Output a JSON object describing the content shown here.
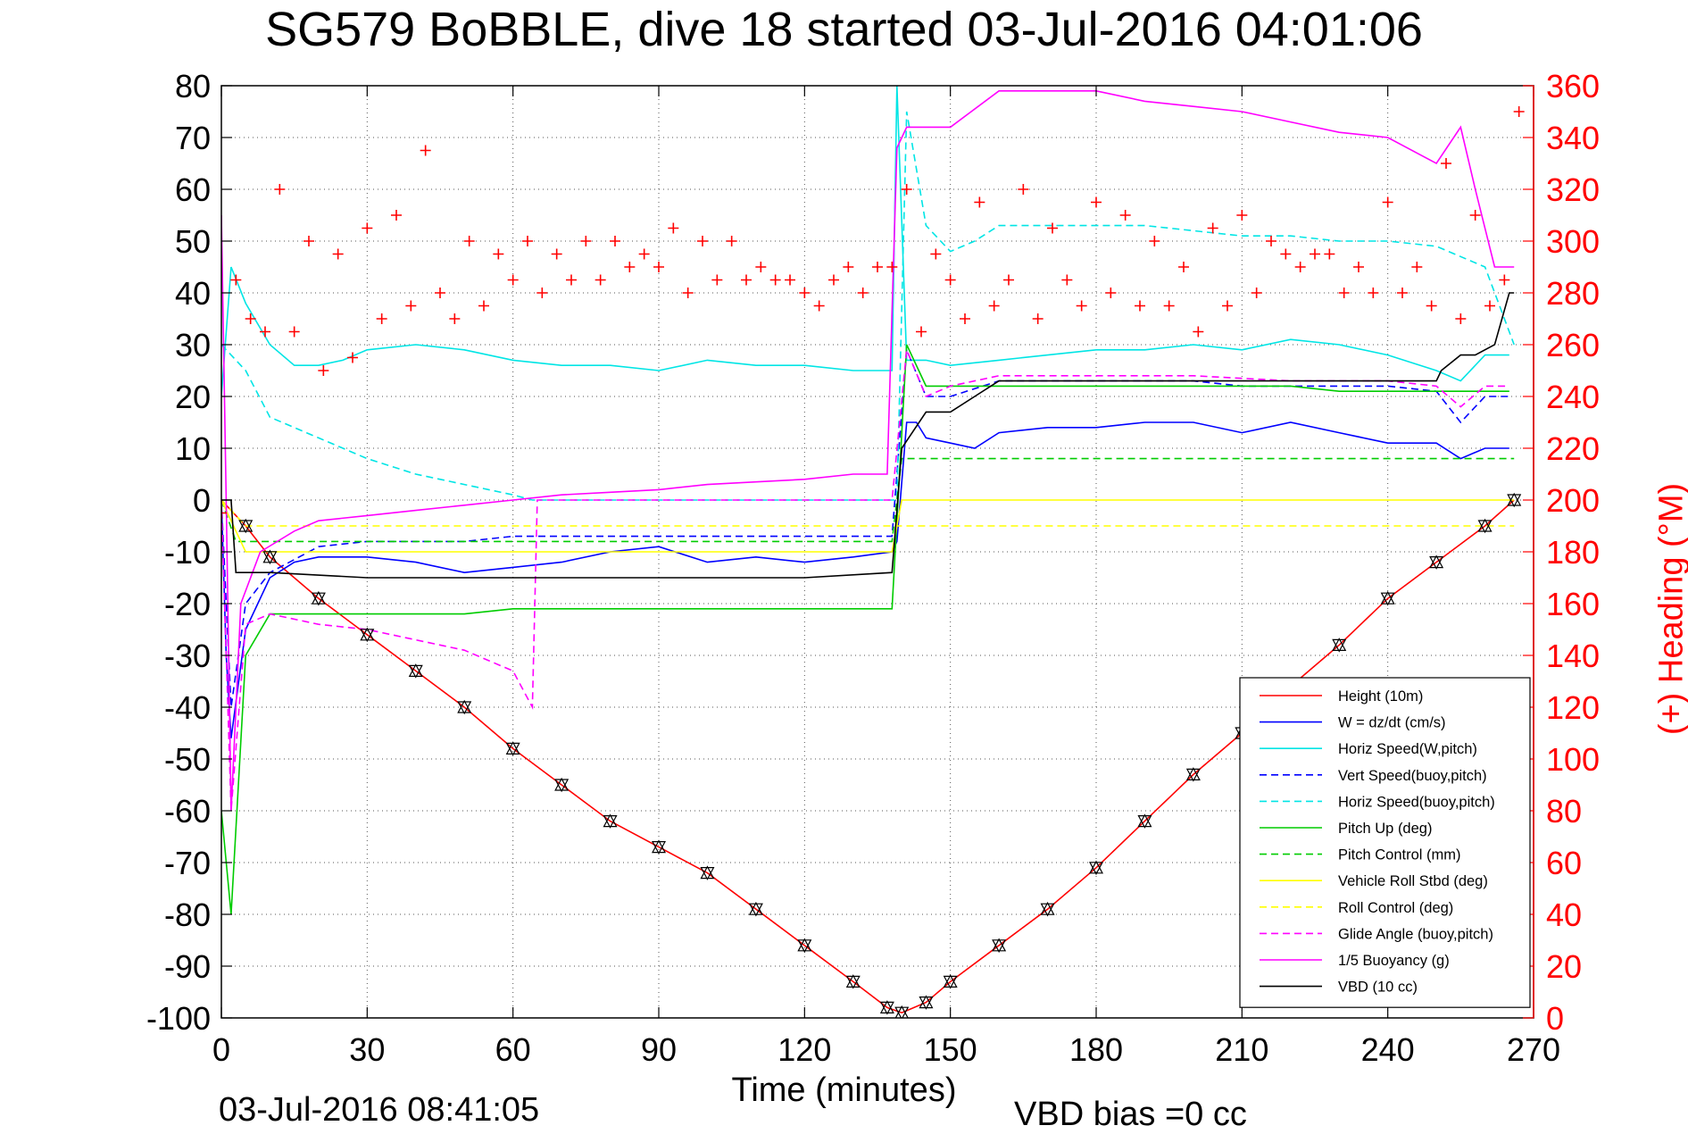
{
  "chart_data": {
    "type": "line",
    "title": "SG579 BoBBLE, dive 18 started 03-Jul-2016 04:01:06",
    "xlabel": "Time (minutes)",
    "ylabel_right": "(+) Heading (°M)",
    "footer_left": "03-Jul-2016 08:41:05",
    "footer_right": "VBD bias =0 cc",
    "xlim": [
      0,
      270
    ],
    "ylim": [
      -100,
      80
    ],
    "ylim_right": [
      0,
      360
    ],
    "xticks": [
      0,
      30,
      60,
      90,
      120,
      150,
      180,
      210,
      240,
      270
    ],
    "yticks": [
      80,
      70,
      60,
      50,
      40,
      30,
      20,
      10,
      0,
      -10,
      -20,
      -30,
      -40,
      -50,
      -60,
      -70,
      -80,
      -90,
      -100
    ],
    "yticks_right": [
      360,
      340,
      320,
      300,
      280,
      260,
      240,
      220,
      200,
      180,
      160,
      140,
      120,
      100,
      80,
      60,
      40,
      20,
      0
    ],
    "grid": true,
    "legend_position": "lower-right",
    "series": [
      {
        "name": "Height (10m)",
        "color": "#ff0000",
        "style": "solid",
        "x": [
          0,
          5,
          10,
          20,
          30,
          40,
          50,
          60,
          70,
          80,
          90,
          100,
          110,
          120,
          130,
          137,
          140,
          145,
          150,
          160,
          170,
          180,
          190,
          200,
          210,
          220,
          230,
          240,
          250,
          260,
          266
        ],
        "y": [
          0,
          -5,
          -11,
          -19,
          -26,
          -33,
          -40,
          -48,
          -55,
          -62,
          -67,
          -72,
          -79,
          -86,
          -93,
          -98,
          -99,
          -97,
          -93,
          -86,
          -79,
          -71,
          -62,
          -53,
          -45,
          -36,
          -28,
          -19,
          -12,
          -5,
          0
        ]
      },
      {
        "name": "W = dz/dt (cm/s)",
        "color": "#0000ff",
        "style": "solid",
        "x": [
          0,
          1,
          2,
          5,
          10,
          15,
          20,
          25,
          30,
          40,
          50,
          60,
          70,
          80,
          90,
          100,
          110,
          120,
          130,
          138,
          139,
          141,
          143,
          145,
          150,
          155,
          160,
          170,
          180,
          190,
          200,
          210,
          220,
          230,
          240,
          250,
          255,
          260,
          265
        ],
        "y": [
          0,
          -30,
          -46,
          -25,
          -15,
          -12,
          -11,
          -11,
          -11,
          -12,
          -14,
          -13,
          -12,
          -10,
          -9,
          -12,
          -11,
          -12,
          -11,
          -10,
          -8,
          15,
          15,
          12,
          11,
          10,
          13,
          14,
          14,
          15,
          15,
          13,
          15,
          13,
          11,
          11,
          8,
          10,
          10
        ]
      },
      {
        "name": "Horiz Speed(W,pitch)",
        "color": "#00e5e5",
        "style": "solid",
        "x": [
          0,
          2,
          5,
          10,
          15,
          20,
          25,
          30,
          40,
          50,
          60,
          70,
          80,
          90,
          100,
          110,
          120,
          130,
          138,
          139,
          141,
          145,
          150,
          160,
          170,
          180,
          190,
          200,
          210,
          220,
          230,
          240,
          250,
          255,
          260,
          265
        ],
        "y": [
          20,
          45,
          38,
          30,
          26,
          26,
          27,
          29,
          30,
          29,
          27,
          26,
          26,
          25,
          27,
          26,
          26,
          25,
          25,
          80,
          27,
          27,
          26,
          27,
          28,
          29,
          29,
          30,
          29,
          31,
          30,
          28,
          25,
          23,
          28,
          28
        ]
      },
      {
        "name": "Vert Speed(buoy,pitch)",
        "color": "#0000ff",
        "style": "dashed",
        "x": [
          0,
          2,
          5,
          10,
          20,
          30,
          40,
          50,
          60,
          70,
          80,
          90,
          100,
          110,
          120,
          130,
          138,
          141,
          145,
          150,
          160,
          170,
          180,
          190,
          200,
          210,
          220,
          230,
          240,
          250,
          255,
          260,
          265
        ],
        "y": [
          0,
          -40,
          -20,
          -14,
          -9,
          -8,
          -8,
          -8,
          -7,
          -7,
          -7,
          -7,
          -7,
          -7,
          -7,
          -7,
          -7,
          29,
          20,
          20,
          23,
          23,
          23,
          23,
          23,
          22,
          22,
          22,
          22,
          21,
          15,
          20,
          20
        ]
      },
      {
        "name": "Horiz Speed(buoy,pitch)",
        "color": "#00e5e5",
        "style": "dashed",
        "x": [
          0,
          5,
          10,
          20,
          30,
          40,
          50,
          60,
          64,
          66,
          80,
          100,
          120,
          139,
          141,
          145,
          150,
          155,
          160,
          170,
          180,
          190,
          200,
          210,
          220,
          230,
          240,
          250,
          260,
          266
        ],
        "y": [
          30,
          25,
          16,
          12,
          8,
          5,
          3,
          1,
          0,
          0,
          0,
          0,
          0,
          0,
          75,
          53,
          48,
          50,
          53,
          53,
          53,
          53,
          52,
          51,
          51,
          50,
          50,
          49,
          45,
          30
        ]
      },
      {
        "name": "Pitch Up (deg)",
        "color": "#00cc00",
        "style": "solid",
        "x": [
          0,
          2,
          5,
          10,
          20,
          30,
          40,
          50,
          60,
          70,
          80,
          90,
          100,
          110,
          120,
          130,
          138,
          141,
          145,
          150,
          155,
          160,
          170,
          180,
          190,
          200,
          210,
          220,
          230,
          240,
          250,
          260,
          265
        ],
        "y": [
          -60,
          -80,
          -30,
          -22,
          -22,
          -22,
          -22,
          -22,
          -21,
          -21,
          -21,
          -21,
          -21,
          -21,
          -21,
          -21,
          -21,
          30,
          22,
          22,
          22,
          22,
          22,
          22,
          22,
          22,
          22,
          22,
          21,
          21,
          21,
          21,
          21
        ]
      },
      {
        "name": "Pitch Control (mm)",
        "color": "#00cc00",
        "style": "dashed",
        "x": [
          0,
          3,
          10,
          30,
          60,
          100,
          138,
          140,
          160,
          200,
          240,
          266
        ],
        "y": [
          0,
          -8,
          -8,
          -8,
          -8,
          -8,
          -8,
          8,
          8,
          8,
          8,
          8
        ]
      },
      {
        "name": "Vehicle Roll Stbd (deg)",
        "color": "#ffff00",
        "style": "solid",
        "x": [
          0,
          5,
          10,
          20,
          40,
          60,
          80,
          100,
          120,
          138,
          140,
          160,
          180,
          200,
          220,
          240,
          260,
          266
        ],
        "y": [
          0,
          -10,
          -10,
          -10,
          -10,
          -10,
          -10,
          -10,
          -10,
          -10,
          0,
          0,
          0,
          0,
          0,
          0,
          0,
          0
        ]
      },
      {
        "name": "Roll Control (deg)",
        "color": "#ffff00",
        "style": "dashed",
        "x": [
          0,
          5,
          10,
          20,
          40,
          60,
          80,
          100,
          120,
          138,
          140,
          160,
          180,
          200,
          220,
          240,
          260,
          266
        ],
        "y": [
          0,
          -5,
          -5,
          -5,
          -5,
          -5,
          -5,
          -5,
          -5,
          -5,
          -5,
          -5,
          -5,
          -5,
          -5,
          -5,
          -5,
          -5
        ]
      },
      {
        "name": "Glide Angle (buoy,pitch)",
        "color": "#ff00ff",
        "style": "dashed",
        "x": [
          0,
          2,
          5,
          10,
          20,
          30,
          40,
          50,
          60,
          64,
          65,
          80,
          100,
          120,
          138,
          141,
          145,
          150,
          160,
          180,
          200,
          220,
          240,
          250,
          255,
          260,
          265
        ],
        "y": [
          0,
          -60,
          -24,
          -22,
          -24,
          -25,
          -27,
          -29,
          -33,
          -40,
          0,
          0,
          0,
          0,
          0,
          29,
          20,
          22,
          24,
          24,
          24,
          23,
          23,
          22,
          18,
          22,
          22
        ]
      },
      {
        "name": "1/5 Buoyancy (g)",
        "color": "#ff00ff",
        "style": "solid",
        "x": [
          0,
          1,
          2,
          4,
          8,
          15,
          20,
          30,
          40,
          50,
          60,
          70,
          80,
          90,
          100,
          110,
          120,
          130,
          137,
          139,
          141,
          145,
          150,
          160,
          170,
          180,
          190,
          200,
          210,
          220,
          230,
          240,
          250,
          255,
          258,
          262,
          266
        ],
        "y": [
          55,
          0,
          -60,
          -20,
          -10,
          -6,
          -4,
          -3,
          -2,
          -1,
          0,
          1,
          1.5,
          2,
          3,
          3.5,
          4,
          5,
          5,
          68,
          72,
          72,
          72,
          79,
          79,
          79,
          77,
          76,
          75,
          73,
          71,
          70,
          65,
          72,
          60,
          45,
          45
        ]
      },
      {
        "name": "VBD (10 cc)",
        "color": "#000000",
        "style": "solid",
        "x": [
          0,
          2,
          3,
          10,
          30,
          60,
          90,
          120,
          138,
          140,
          145,
          150,
          155,
          160,
          170,
          200,
          230,
          250,
          251,
          255,
          258,
          262,
          265,
          266
        ],
        "y": [
          0,
          0,
          -14,
          -14,
          -15,
          -15,
          -15,
          -15,
          -14,
          10,
          17,
          17,
          20,
          23,
          23,
          23,
          23,
          23,
          25,
          28,
          28,
          30,
          40,
          40
        ]
      },
      {
        "name": "Heading",
        "color": "#ff0000",
        "style": "plus",
        "axis": "right",
        "x": [
          0,
          3,
          6,
          9,
          12,
          15,
          18,
          21,
          24,
          27,
          30,
          33,
          36,
          39,
          42,
          45,
          48,
          51,
          54,
          57,
          60,
          63,
          66,
          69,
          72,
          75,
          78,
          81,
          84,
          87,
          90,
          93,
          96,
          99,
          102,
          105,
          108,
          111,
          114,
          117,
          120,
          123,
          126,
          129,
          132,
          135,
          138,
          141,
          144,
          147,
          150,
          153,
          156,
          159,
          162,
          165,
          168,
          171,
          174,
          177,
          180,
          183,
          186,
          189,
          192,
          195,
          198,
          201,
          204,
          207,
          210,
          213,
          216,
          219,
          222,
          225,
          228,
          231,
          234,
          237,
          240,
          243,
          246,
          249,
          252,
          255,
          258,
          261,
          264,
          267
        ],
        "y": [
          195,
          285,
          270,
          265,
          320,
          265,
          300,
          250,
          295,
          255,
          305,
          270,
          310,
          275,
          335,
          280,
          270,
          300,
          275,
          295,
          285,
          300,
          280,
          295,
          285,
          300,
          285,
          300,
          290,
          295,
          290,
          305,
          280,
          300,
          285,
          300,
          285,
          290,
          285,
          285,
          280,
          275,
          285,
          290,
          280,
          290,
          290,
          320,
          265,
          295,
          285,
          270,
          315,
          275,
          285,
          320,
          270,
          305,
          285,
          275,
          315,
          280,
          310,
          275,
          300,
          275,
          290,
          265,
          305,
          275,
          310,
          280,
          300,
          295,
          290,
          295,
          295,
          280,
          290,
          280,
          315,
          280,
          290,
          275,
          330,
          270,
          310,
          275,
          285,
          350
        ]
      }
    ]
  }
}
